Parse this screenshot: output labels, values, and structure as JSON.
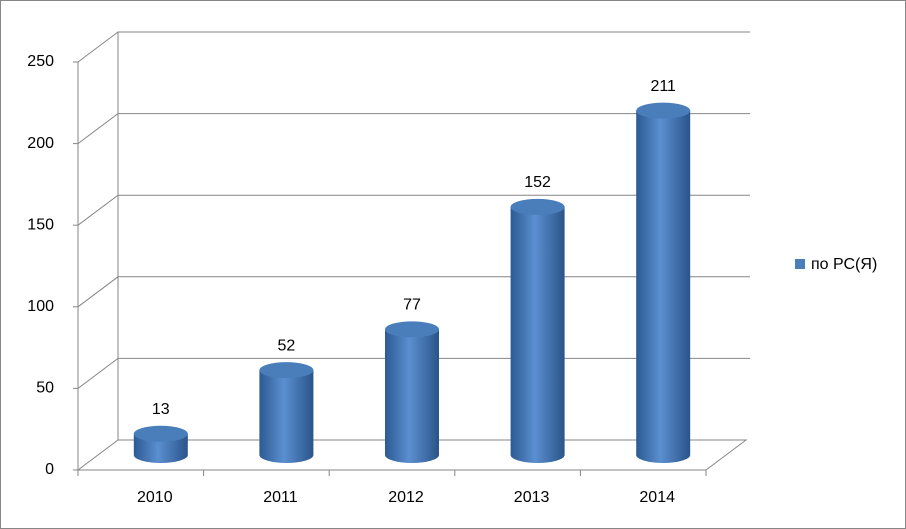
{
  "chart_data": {
    "type": "bar3d",
    "categories": [
      "2010",
      "2011",
      "2012",
      "2013",
      "2014"
    ],
    "series": [
      {
        "name": "по РС(Я)",
        "color": "#4a7ebb",
        "values": [
          13,
          52,
          77,
          152,
          211
        ]
      }
    ],
    "ylim": [
      0,
      250
    ],
    "yticks": [
      0,
      50,
      100,
      150,
      200,
      250
    ],
    "grid": true,
    "legend": "right"
  }
}
